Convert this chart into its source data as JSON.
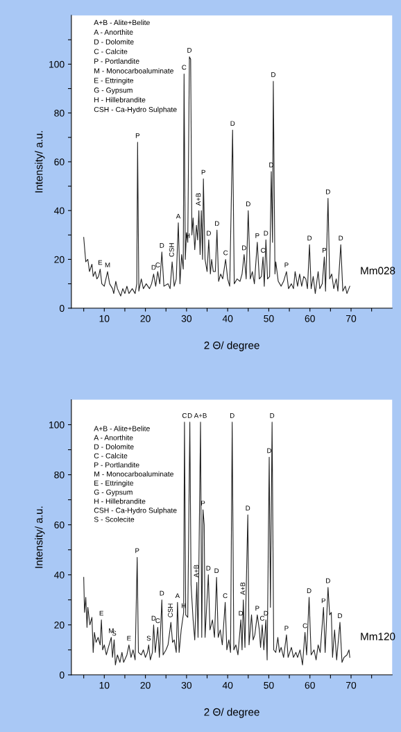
{
  "chart_data": [
    {
      "type": "line",
      "xlabel": "2 Θ/ degree",
      "ylabel": "Intensity/ a.u.",
      "xlim": [
        2,
        80
      ],
      "ylim": [
        0,
        120
      ],
      "xticks": [
        {
          "value": 5,
          "label": null
        },
        10,
        {
          "value": 15,
          "label": null
        },
        20,
        {
          "value": 25,
          "label": null
        },
        30,
        {
          "value": 35,
          "label": null
        },
        40,
        {
          "value": 45,
          "label": null
        },
        50,
        {
          "value": 55,
          "label": null
        },
        60,
        {
          "value": 65,
          "label": null
        },
        70,
        {
          "value": 75,
          "label": null
        }
      ],
      "yticks": [
        0,
        {
          "value": 10,
          "label": null
        },
        20,
        {
          "value": 30,
          "label": null
        },
        40,
        {
          "value": 50,
          "label": null
        },
        60,
        {
          "value": 70,
          "label": null
        },
        80,
        {
          "value": 90,
          "label": null
        },
        100,
        {
          "value": 110,
          "label": null
        }
      ],
      "grid": false,
      "legend": false,
      "marker": "none",
      "line_style": "solid",
      "series": [
        {
          "name": "Mm028",
          "color": "#222222",
          "x": [
            5.0,
            5.5,
            6.0,
            6.4,
            7.0,
            7.3,
            7.8,
            8.2,
            8.6,
            9.0,
            9.4,
            10.0,
            10.8,
            11.3,
            12.0,
            12.3,
            12.8,
            13.2,
            14.0,
            14.5,
            15.0,
            15.5,
            16.0,
            16.8,
            17.5,
            17.9,
            18.1,
            18.4,
            19.0,
            19.5,
            20.2,
            21.0,
            21.5,
            22.0,
            22.5,
            23.0,
            23.5,
            24.0,
            24.5,
            25.5,
            26.0,
            26.5,
            27.0,
            27.5,
            28.0,
            28.4,
            28.8,
            29.2,
            29.4,
            29.7,
            30.0,
            30.3,
            30.7,
            31.0,
            31.3,
            31.6,
            32.0,
            32.4,
            32.7,
            33.0,
            33.3,
            33.6,
            33.9,
            34.1,
            34.5,
            35.0,
            35.4,
            35.8,
            36.1,
            36.5,
            37.0,
            37.4,
            37.8,
            38.3,
            38.8,
            39.5,
            40.0,
            40.5,
            41.2,
            41.6,
            42.3,
            43.0,
            43.5,
            44.0,
            44.5,
            45.0,
            45.5,
            46.0,
            46.5,
            47.2,
            47.7,
            48.2,
            48.6,
            48.9,
            49.3,
            49.7,
            50.2,
            50.6,
            50.9,
            51.1,
            51.5,
            51.7,
            52.3,
            53.0,
            53.6,
            54.3,
            54.8,
            55.5,
            56.0,
            56.4,
            57.0,
            57.5,
            58.0,
            58.5,
            59.0,
            59.4,
            59.9,
            60.3,
            60.8,
            61.3,
            62.0,
            62.4,
            63.0,
            63.5,
            63.8,
            64.4,
            64.8,
            65.3,
            65.8,
            66.4,
            66.8,
            67.5,
            68.0,
            68.6,
            69.0,
            69.7
          ],
          "values": [
            29,
            19,
            20,
            15,
            18,
            13,
            15,
            12,
            13,
            16,
            10,
            9,
            15,
            10,
            8,
            6,
            11,
            8,
            5,
            8,
            6,
            9,
            6,
            8,
            6,
            10,
            68,
            7,
            12,
            8,
            10,
            8,
            10,
            14,
            9,
            15,
            10,
            23,
            9,
            10,
            8,
            19,
            9,
            12,
            35,
            10,
            22,
            16,
            96,
            20,
            31,
            27,
            103,
            102,
            30,
            37,
            24,
            34,
            28,
            40,
            22,
            40,
            20,
            53,
            20,
            15,
            28,
            14,
            20,
            15,
            15,
            32,
            11,
            14,
            12,
            20,
            12,
            9,
            73,
            10,
            12,
            11,
            14,
            22,
            12,
            40,
            12,
            15,
            10,
            27,
            12,
            13,
            21,
            9,
            28,
            12,
            13,
            56,
            27,
            93,
            14,
            19,
            11,
            9,
            11,
            15,
            8,
            10,
            8,
            15,
            9,
            14,
            9,
            13,
            12,
            8,
            26,
            8,
            13,
            6,
            15,
            8,
            10,
            21,
            7,
            45,
            12,
            14,
            8,
            12,
            7,
            26,
            7,
            9,
            6,
            9
          ]
        }
      ],
      "annotations": [
        "A+B - Alite+Belite",
        "A - Anorthite",
        "D - Dolomite",
        "C - Calcite",
        "P - Portlandite",
        "M - Monocarboaluminate",
        "E - Ettringite",
        "G - Gypsum",
        "H - Hillebrandite",
        "CSH - Ca-Hydro Sulphate",
        {
          "text": "E",
          "x": 9.0,
          "y": 16
        },
        {
          "text": "M",
          "x": 10.8,
          "y": 15
        },
        {
          "text": "P",
          "x": 18.1,
          "y": 68
        },
        {
          "text": "D",
          "x": 22.0,
          "y": 14
        },
        {
          "text": "C",
          "x": 23.0,
          "y": 15
        },
        {
          "text": "D",
          "x": 24.0,
          "y": 23
        },
        {
          "text": "CSH",
          "x": 26.5,
          "y": 19
        },
        {
          "text": "A",
          "x": 28.0,
          "y": 35
        },
        {
          "text": "H",
          "x": 30.3,
          "y": 27
        },
        {
          "text": "C",
          "x": 29.4,
          "y": 96
        },
        {
          "text": "D",
          "x": 30.7,
          "y": 103
        },
        {
          "text": "A+B",
          "x": 33.0,
          "y": 40
        },
        {
          "text": "P",
          "x": 34.1,
          "y": 53
        },
        {
          "text": "D",
          "x": 35.4,
          "y": 28
        },
        {
          "text": "D",
          "x": 37.4,
          "y": 32
        },
        {
          "text": "C",
          "x": 39.5,
          "y": 20
        },
        {
          "text": "D",
          "x": 41.2,
          "y": 73
        },
        {
          "text": "D",
          "x": 44.0,
          "y": 22
        },
        {
          "text": "D",
          "x": 45.0,
          "y": 40
        },
        {
          "text": "P",
          "x": 47.2,
          "y": 27
        },
        {
          "text": "C",
          "x": 48.6,
          "y": 21
        },
        {
          "text": "D",
          "x": 49.3,
          "y": 28
        },
        {
          "text": "D",
          "x": 50.6,
          "y": 56
        },
        {
          "text": "D",
          "x": 51.1,
          "y": 93
        },
        {
          "text": "P",
          "x": 54.3,
          "y": 15
        },
        {
          "text": "D",
          "x": 59.9,
          "y": 26
        },
        {
          "text": "P",
          "x": 63.5,
          "y": 21
        },
        {
          "text": "D",
          "x": 64.4,
          "y": 45
        },
        {
          "text": "D",
          "x": 67.5,
          "y": 26
        }
      ]
    },
    {
      "type": "line",
      "xlabel": "2 Θ/ degree",
      "ylabel": "Intensity/ a.u.",
      "xlim": [
        2,
        80
      ],
      "ylim": [
        0,
        110
      ],
      "xticks": [
        {
          "value": 5,
          "label": null
        },
        10,
        {
          "value": 15,
          "label": null
        },
        20,
        {
          "value": 25,
          "label": null
        },
        30,
        {
          "value": 35,
          "label": null
        },
        40,
        {
          "value": 45,
          "label": null
        },
        50,
        {
          "value": 55,
          "label": null
        },
        60,
        {
          "value": 65,
          "label": null
        },
        70,
        {
          "value": 75,
          "label": null
        }
      ],
      "yticks": [
        0,
        {
          "value": 10,
          "label": null
        },
        20,
        {
          "value": 30,
          "label": null
        },
        40,
        {
          "value": 50,
          "label": null
        },
        60,
        {
          "value": 70,
          "label": null
        },
        80,
        {
          "value": 90,
          "label": null
        },
        100
      ],
      "grid": false,
      "legend": false,
      "marker": "none",
      "line_style": "solid",
      "series": [
        {
          "name": "Mm120",
          "color": "#222222",
          "x": [
            5.0,
            5.2,
            5.5,
            5.8,
            6.0,
            6.5,
            7.0,
            7.3,
            7.6,
            8.0,
            8.5,
            9.0,
            9.3,
            9.6,
            10.0,
            10.5,
            11.0,
            11.7,
            12.0,
            12.4,
            12.7,
            13.2,
            13.8,
            14.3,
            14.7,
            15.5,
            16.0,
            16.5,
            17.0,
            17.5,
            18.0,
            18.3,
            19.0,
            19.5,
            20.0,
            20.5,
            20.8,
            21.2,
            21.7,
            22.0,
            22.4,
            23.0,
            23.4,
            24.0,
            24.3,
            25.0,
            25.5,
            26.2,
            26.6,
            27.0,
            27.5,
            27.8,
            28.2,
            28.7,
            29.3,
            29.5,
            29.8,
            30.3,
            30.8,
            31.1,
            31.6,
            32.0,
            32.5,
            32.8,
            33.4,
            33.7,
            34.0,
            34.3,
            34.5,
            35.3,
            35.7,
            36.3,
            36.8,
            37.3,
            37.7,
            38.2,
            38.7,
            39.4,
            39.8,
            40.3,
            40.7,
            41.1,
            41.5,
            42.0,
            42.5,
            43.2,
            43.5,
            43.8,
            44.2,
            44.9,
            45.2,
            45.8,
            46.2,
            46.6,
            47.2,
            47.7,
            48.0,
            48.4,
            48.8,
            49.3,
            49.6,
            50.1,
            50.4,
            50.8,
            51.2,
            51.7,
            52.2,
            52.6,
            53.0,
            53.6,
            54.3,
            54.7,
            55.5,
            56.0,
            56.6,
            57.0,
            57.6,
            58.2,
            58.8,
            59.2,
            59.8,
            60.3,
            61.0,
            61.5,
            62.0,
            62.5,
            63.3,
            63.7,
            64.4,
            64.8,
            65.2,
            65.5,
            66.0,
            66.5,
            67.3,
            67.8,
            68.3,
            69.0,
            69.5,
            69.7
          ],
          "values": [
            39,
            25,
            31,
            19,
            27,
            20,
            23,
            9,
            17,
            13,
            15,
            12,
            22,
            10,
            12,
            8,
            11,
            15,
            7,
            14,
            4,
            8,
            5,
            9,
            5,
            8,
            12,
            7,
            10,
            6,
            47,
            9,
            8,
            10,
            7,
            9,
            12,
            6,
            9,
            20,
            9,
            19,
            7,
            30,
            8,
            10,
            12,
            21,
            13,
            14,
            9,
            29,
            9,
            18,
            25,
            101,
            24,
            23,
            101,
            36,
            22,
            14,
            37,
            15,
            101,
            15,
            66,
            60,
            15,
            40,
            18,
            22,
            15,
            39,
            15,
            18,
            12,
            29,
            10,
            14,
            9,
            101,
            10,
            12,
            8,
            22,
            10,
            30,
            11,
            64,
            12,
            24,
            14,
            16,
            24,
            18,
            11,
            20,
            10,
            22,
            6,
            87,
            27,
            101,
            10,
            9,
            15,
            9,
            11,
            7,
            16,
            7,
            11,
            7,
            9,
            7,
            10,
            4,
            17,
            8,
            31,
            8,
            10,
            6,
            12,
            9,
            27,
            9,
            35,
            24,
            25,
            7,
            18,
            6,
            21,
            5,
            7,
            8,
            10,
            7
          ]
        }
      ],
      "annotations": [
        "A+B - Alite+Belite",
        "A - Anorthite",
        "D - Dolomite",
        "C - Calcite",
        "P - Portlandite",
        "M - Monocarboaluminate",
        "E - Ettringite",
        "G - Gypsum",
        "H - Hillebrandite",
        "CSH - Ca-Hydro Sulphate",
        "S - Scolecite",
        {
          "text": "E",
          "x": 9.3,
          "y": 22
        },
        {
          "text": "M",
          "x": 11.7,
          "y": 15
        },
        {
          "text": "S",
          "x": 12.4,
          "y": 14
        },
        {
          "text": "E",
          "x": 16.0,
          "y": 12
        },
        {
          "text": "S",
          "x": 20.8,
          "y": 12
        },
        {
          "text": "P",
          "x": 18.0,
          "y": 47
        },
        {
          "text": "D",
          "x": 22.0,
          "y": 20
        },
        {
          "text": "C",
          "x": 23.0,
          "y": 19
        },
        {
          "text": "D",
          "x": 24.0,
          "y": 30
        },
        {
          "text": "CSH",
          "x": 26.2,
          "y": 21
        },
        {
          "text": "A",
          "x": 27.8,
          "y": 29
        },
        {
          "text": "H",
          "x": 29.3,
          "y": 25
        },
        {
          "text": "C",
          "x": 29.5,
          "y": 101
        },
        {
          "text": "D",
          "x": 30.8,
          "y": 101
        },
        {
          "text": "A+B",
          "x": 33.4,
          "y": 101
        },
        {
          "text": "A+B",
          "x": 32.5,
          "y": 37
        },
        {
          "text": "P",
          "x": 34.0,
          "y": 66
        },
        {
          "text": "D",
          "x": 35.3,
          "y": 40
        },
        {
          "text": "D",
          "x": 37.3,
          "y": 39
        },
        {
          "text": "C",
          "x": 39.4,
          "y": 29
        },
        {
          "text": "D",
          "x": 41.1,
          "y": 101
        },
        {
          "text": "D",
          "x": 43.2,
          "y": 22
        },
        {
          "text": "A+B",
          "x": 43.8,
          "y": 30
        },
        {
          "text": "D",
          "x": 44.9,
          "y": 64
        },
        {
          "text": "P",
          "x": 47.2,
          "y": 24
        },
        {
          "text": "C",
          "x": 48.4,
          "y": 20
        },
        {
          "text": "D",
          "x": 49.3,
          "y": 22
        },
        {
          "text": "D",
          "x": 50.1,
          "y": 87
        },
        {
          "text": "D",
          "x": 50.8,
          "y": 101
        },
        {
          "text": "P",
          "x": 54.3,
          "y": 16
        },
        {
          "text": "C",
          "x": 58.8,
          "y": 17
        },
        {
          "text": "D",
          "x": 59.8,
          "y": 31
        },
        {
          "text": "P",
          "x": 63.3,
          "y": 27
        },
        {
          "text": "D",
          "x": 64.4,
          "y": 35
        },
        {
          "text": "D",
          "x": 67.3,
          "y": 21
        }
      ]
    }
  ]
}
